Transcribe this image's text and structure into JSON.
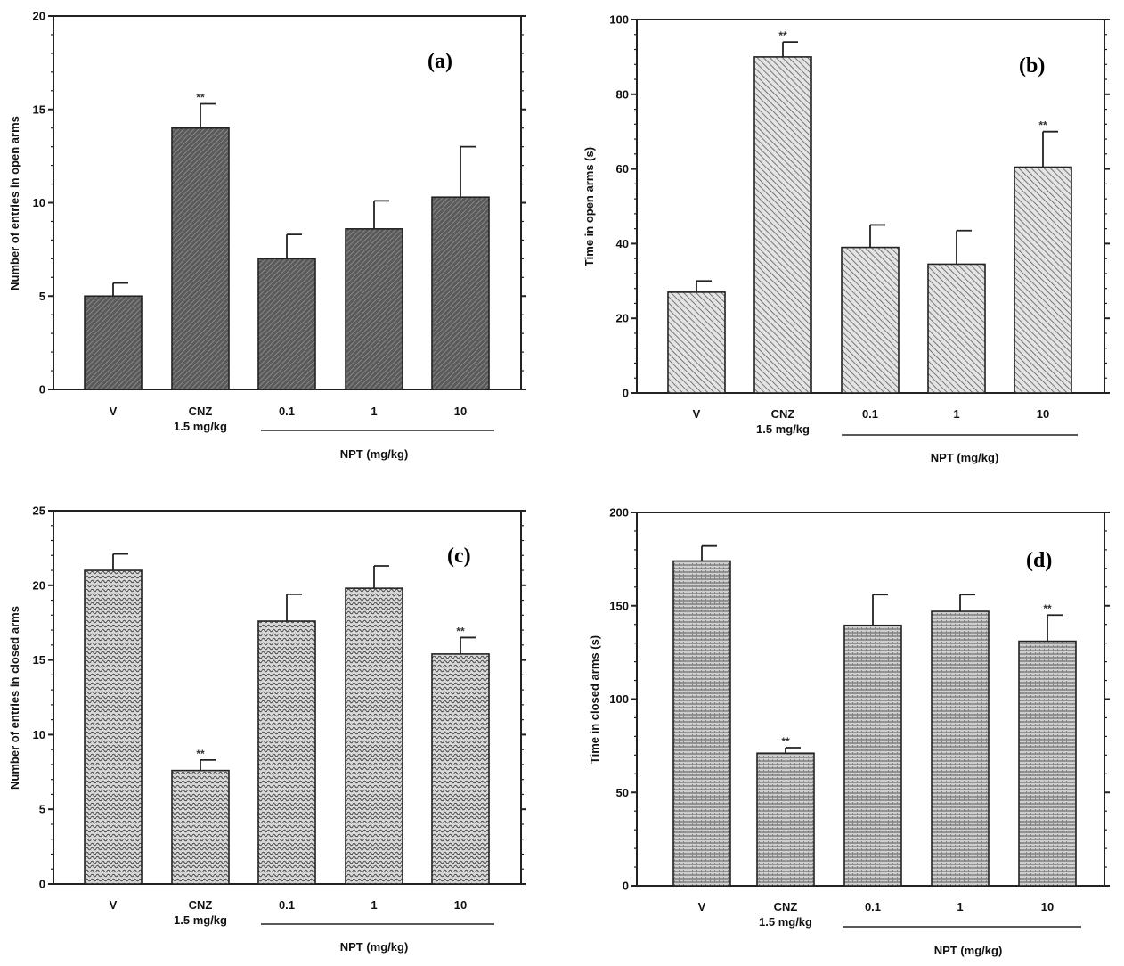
{
  "chart_data": [
    {
      "type": "bar",
      "panel": "(a)",
      "categories": [
        "V",
        "CNZ",
        "0.1",
        "1",
        "10"
      ],
      "category_sublabels": [
        "",
        "1.5 mg/kg",
        "",
        "",
        ""
      ],
      "group_label": "NPT (mg/kg)",
      "values": [
        5,
        14,
        7,
        8.6,
        10.3
      ],
      "errors": [
        0.7,
        1.3,
        1.3,
        1.5,
        2.7
      ],
      "significance": [
        "",
        "**",
        "",
        "",
        ""
      ],
      "ylabel": "Number of entries in open arms",
      "ylim": [
        0,
        20
      ],
      "yticks": [
        0,
        5,
        10,
        15,
        20
      ],
      "fill_color": "#6e6e6e",
      "pattern": "dense"
    },
    {
      "type": "bar",
      "panel": "(b)",
      "categories": [
        "V",
        "CNZ",
        "0.1",
        "1",
        "10"
      ],
      "category_sublabels": [
        "",
        "1.5 mg/kg",
        "",
        "",
        ""
      ],
      "group_label": "NPT (mg/kg)",
      "values": [
        27,
        90,
        39,
        34.5,
        60.5
      ],
      "errors": [
        3,
        4,
        6,
        9,
        9.5
      ],
      "significance": [
        "",
        "**",
        "",
        "",
        "**"
      ],
      "ylabel": "Time in open arms (s)",
      "ylim": [
        0,
        100
      ],
      "yticks": [
        0,
        20,
        40,
        60,
        80,
        100
      ],
      "fill_color": "#b0b0b0",
      "pattern": "diagonal"
    },
    {
      "type": "bar",
      "panel": "(c)",
      "categories": [
        "V",
        "CNZ",
        "0.1",
        "1",
        "10"
      ],
      "category_sublabels": [
        "",
        "1.5 mg/kg",
        "",
        "",
        ""
      ],
      "group_label": "NPT (mg/kg)",
      "values": [
        21,
        7.6,
        17.6,
        19.8,
        15.4
      ],
      "errors": [
        1.1,
        0.7,
        1.8,
        1.5,
        1.1
      ],
      "significance": [
        "",
        "**",
        "",
        "",
        "**"
      ],
      "ylabel": "Number of entries in closed arms",
      "ylim": [
        0,
        25
      ],
      "yticks": [
        0,
        5,
        10,
        15,
        20,
        25
      ],
      "fill_color": "#9a9a9a",
      "pattern": "wave"
    },
    {
      "type": "bar",
      "panel": "(d)",
      "categories": [
        "V",
        "CNZ",
        "0.1",
        "1",
        "10"
      ],
      "category_sublabels": [
        "",
        "1.5 mg/kg",
        "",
        "",
        ""
      ],
      "group_label": "NPT (mg/kg)",
      "values": [
        174,
        71,
        139.5,
        147,
        131
      ],
      "errors": [
        8,
        3,
        16.5,
        9,
        14
      ],
      "significance": [
        "",
        "**",
        "",
        "",
        "**"
      ],
      "ylabel": "Time in closed arms (s)",
      "ylim": [
        0,
        200
      ],
      "yticks": [
        0,
        50,
        100,
        150,
        200
      ],
      "fill_color": "#a8a8a8",
      "pattern": "grid"
    }
  ]
}
